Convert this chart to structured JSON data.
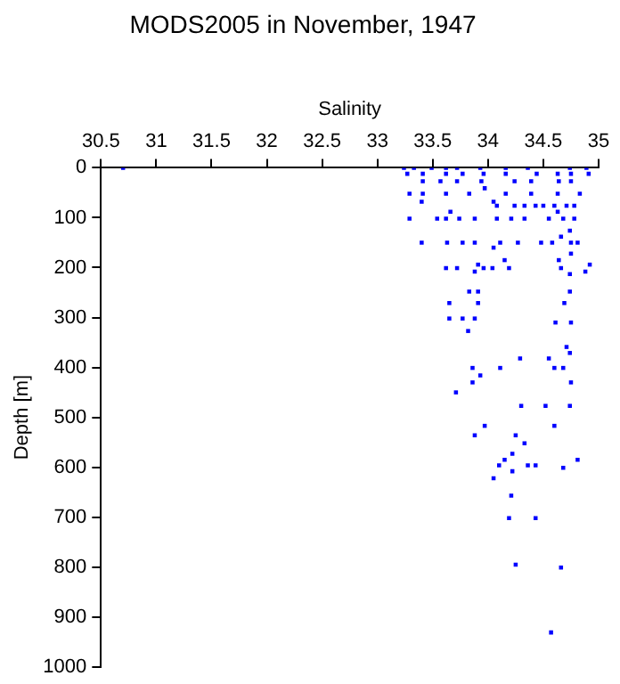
{
  "chart_data": {
    "type": "scatter",
    "title": "MODS2005 in November, 1947",
    "xlabel": "Salinity",
    "ylabel": "Depth [m]",
    "x": [
      30.7,
      33.24,
      33.33,
      33.49,
      33.62,
      33.72,
      33.93,
      34.16,
      34.36,
      34.74,
      34.89,
      33.27,
      33.41,
      33.62,
      33.77,
      33.96,
      34.16,
      34.44,
      34.63,
      34.75,
      34.91,
      33.41,
      33.57,
      33.72,
      33.94,
      34.24,
      34.39,
      34.64,
      34.75,
      33.97,
      33.29,
      33.41,
      33.62,
      33.83,
      34.16,
      34.39,
      34.63,
      34.83,
      33.4,
      34.05,
      34.08,
      34.24,
      34.33,
      34.43,
      34.5,
      34.6,
      34.71,
      34.78,
      33.66,
      34.63,
      33.29,
      33.54,
      33.62,
      33.74,
      33.88,
      34.08,
      34.21,
      34.33,
      34.55,
      34.68,
      34.78,
      34.74,
      34.66,
      33.4,
      33.63,
      33.77,
      33.88,
      34.11,
      34.27,
      34.48,
      34.58,
      34.75,
      34.81,
      34.05,
      34.75,
      34.15,
      34.64,
      34.92,
      33.91,
      33.62,
      33.72,
      33.96,
      34.04,
      34.19,
      34.66,
      33.88,
      34.88,
      34.74,
      33.83,
      33.91,
      34.74,
      33.65,
      33.91,
      34.69,
      33.65,
      33.77,
      33.88,
      34.61,
      34.75,
      33.82,
      34.71,
      34.74,
      34.29,
      34.55,
      33.86,
      34.11,
      34.6,
      34.68,
      33.93,
      33.86,
      34.75,
      33.71,
      34.3,
      34.52,
      34.74,
      33.97,
      34.6,
      33.88,
      34.25,
      34.33,
      34.22,
      34.15,
      34.81,
      34.1,
      34.36,
      34.43,
      34.68,
      34.22,
      34.05,
      34.21,
      34.19,
      34.43,
      34.25,
      34.66,
      34.57
    ],
    "values": [
      0,
      0,
      0,
      0,
      0,
      0,
      0,
      0,
      0,
      0,
      0,
      12,
      12,
      12,
      12,
      12,
      12,
      12,
      12,
      12,
      12,
      27,
      27,
      27,
      27,
      27,
      27,
      27,
      27,
      41,
      52,
      52,
      52,
      52,
      52,
      52,
      52,
      52,
      68,
      68,
      76,
      76,
      76,
      76,
      76,
      76,
      76,
      76,
      88,
      88,
      102,
      102,
      102,
      102,
      102,
      102,
      102,
      102,
      102,
      102,
      102,
      126,
      138,
      150,
      150,
      150,
      150,
      150,
      150,
      150,
      150,
      150,
      150,
      160,
      172,
      185,
      185,
      194,
      194,
      201,
      201,
      201,
      201,
      201,
      201,
      208,
      208,
      213,
      248,
      248,
      248,
      271,
      271,
      271,
      302,
      302,
      302,
      310,
      310,
      327,
      359,
      371,
      382,
      382,
      401,
      401,
      401,
      401,
      416,
      430,
      430,
      450,
      477,
      477,
      477,
      517,
      517,
      536,
      536,
      552,
      573,
      585,
      585,
      596,
      596,
      596,
      601,
      608,
      622,
      657,
      702,
      702,
      795,
      801,
      931
    ],
    "color": "#0000ff",
    "marker": "square",
    "grid": false,
    "legend": false,
    "xlim": [
      30.5,
      35
    ],
    "xticks": [
      30.5,
      31,
      31.5,
      32,
      32.5,
      33,
      33.5,
      34,
      34.5,
      35
    ],
    "ylim": [
      1000,
      0
    ],
    "yticks": [
      0,
      100,
      200,
      300,
      400,
      500,
      600,
      700,
      800,
      900,
      1000
    ]
  }
}
